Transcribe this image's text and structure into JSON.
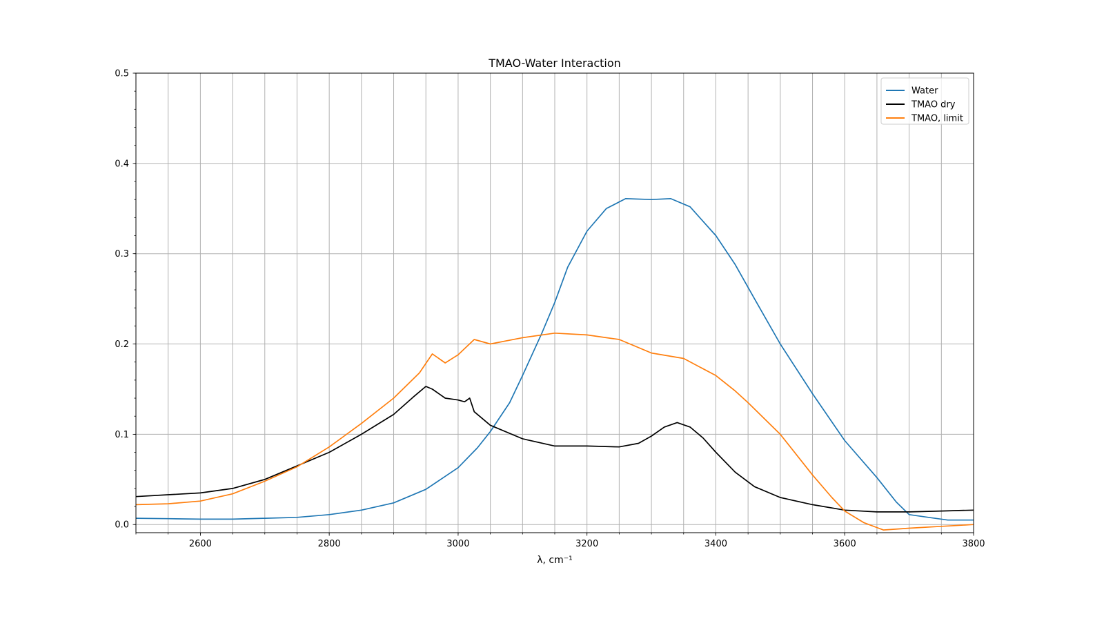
{
  "chart_data": {
    "type": "line",
    "title": "TMAO-Water Interaction",
    "xlabel": "λ, cm⁻¹",
    "ylabel": "",
    "xlim": [
      2500,
      3800
    ],
    "ylim": [
      -0.009,
      0.5
    ],
    "x_major_ticks": [
      2600,
      2800,
      3000,
      3200,
      3400,
      3600,
      3800
    ],
    "x_minor_step": 50,
    "y_major_ticks": [
      0.0,
      0.1,
      0.2,
      0.3,
      0.4,
      0.5
    ],
    "y_major_tick_labels": [
      "0.0",
      "0.1",
      "0.2",
      "0.3",
      "0.4",
      "0.5"
    ],
    "y_minor_step": 0.02,
    "grid": "vertical lines at every x minor tick, horizontal lines at y major ticks",
    "legend_position": "top-right",
    "series": [
      {
        "name": "Water",
        "color": "#1f77b4",
        "points": [
          [
            2500,
            0.007
          ],
          [
            2550,
            0.0065
          ],
          [
            2600,
            0.006
          ],
          [
            2650,
            0.006
          ],
          [
            2700,
            0.007
          ],
          [
            2750,
            0.008
          ],
          [
            2800,
            0.011
          ],
          [
            2850,
            0.016
          ],
          [
            2900,
            0.024
          ],
          [
            2950,
            0.039
          ],
          [
            3000,
            0.063
          ],
          [
            3030,
            0.085
          ],
          [
            3050,
            0.103
          ],
          [
            3080,
            0.135
          ],
          [
            3100,
            0.165
          ],
          [
            3130,
            0.212
          ],
          [
            3150,
            0.246
          ],
          [
            3170,
            0.285
          ],
          [
            3200,
            0.325
          ],
          [
            3230,
            0.35
          ],
          [
            3260,
            0.361
          ],
          [
            3300,
            0.36
          ],
          [
            3330,
            0.361
          ],
          [
            3360,
            0.352
          ],
          [
            3400,
            0.32
          ],
          [
            3430,
            0.288
          ],
          [
            3460,
            0.25
          ],
          [
            3500,
            0.2
          ],
          [
            3550,
            0.145
          ],
          [
            3600,
            0.093
          ],
          [
            3650,
            0.052
          ],
          [
            3680,
            0.025
          ],
          [
            3700,
            0.011
          ],
          [
            3730,
            0.008
          ],
          [
            3760,
            0.005
          ],
          [
            3800,
            0.005
          ]
        ]
      },
      {
        "name": "TMAO dry",
        "color": "#000000",
        "points": [
          [
            2500,
            0.031
          ],
          [
            2550,
            0.033
          ],
          [
            2600,
            0.035
          ],
          [
            2650,
            0.04
          ],
          [
            2700,
            0.05
          ],
          [
            2750,
            0.065
          ],
          [
            2800,
            0.08
          ],
          [
            2850,
            0.1
          ],
          [
            2900,
            0.122
          ],
          [
            2930,
            0.141
          ],
          [
            2950,
            0.153
          ],
          [
            2960,
            0.15
          ],
          [
            2980,
            0.14
          ],
          [
            3000,
            0.138
          ],
          [
            3010,
            0.136
          ],
          [
            3018,
            0.14
          ],
          [
            3025,
            0.125
          ],
          [
            3050,
            0.11
          ],
          [
            3100,
            0.095
          ],
          [
            3150,
            0.087
          ],
          [
            3200,
            0.087
          ],
          [
            3250,
            0.086
          ],
          [
            3280,
            0.09
          ],
          [
            3300,
            0.098
          ],
          [
            3320,
            0.108
          ],
          [
            3340,
            0.113
          ],
          [
            3360,
            0.108
          ],
          [
            3380,
            0.096
          ],
          [
            3400,
            0.08
          ],
          [
            3430,
            0.058
          ],
          [
            3460,
            0.042
          ],
          [
            3500,
            0.03
          ],
          [
            3550,
            0.022
          ],
          [
            3600,
            0.016
          ],
          [
            3650,
            0.014
          ],
          [
            3700,
            0.014
          ],
          [
            3750,
            0.015
          ],
          [
            3800,
            0.016
          ]
        ]
      },
      {
        "name": "TMAO, limit",
        "color": "#ff7f0e",
        "points": [
          [
            2500,
            0.022
          ],
          [
            2550,
            0.023
          ],
          [
            2600,
            0.026
          ],
          [
            2650,
            0.034
          ],
          [
            2700,
            0.048
          ],
          [
            2750,
            0.064
          ],
          [
            2800,
            0.086
          ],
          [
            2850,
            0.112
          ],
          [
            2900,
            0.14
          ],
          [
            2940,
            0.168
          ],
          [
            2960,
            0.189
          ],
          [
            2980,
            0.179
          ],
          [
            3000,
            0.188
          ],
          [
            3025,
            0.205
          ],
          [
            3050,
            0.2
          ],
          [
            3100,
            0.207
          ],
          [
            3150,
            0.212
          ],
          [
            3200,
            0.21
          ],
          [
            3250,
            0.205
          ],
          [
            3300,
            0.19
          ],
          [
            3350,
            0.184
          ],
          [
            3400,
            0.165
          ],
          [
            3430,
            0.148
          ],
          [
            3450,
            0.135
          ],
          [
            3500,
            0.1
          ],
          [
            3550,
            0.055
          ],
          [
            3580,
            0.03
          ],
          [
            3600,
            0.015
          ],
          [
            3630,
            0.002
          ],
          [
            3660,
            -0.006
          ],
          [
            3700,
            -0.004
          ],
          [
            3750,
            -0.002
          ],
          [
            3800,
            0.0
          ]
        ]
      }
    ]
  }
}
